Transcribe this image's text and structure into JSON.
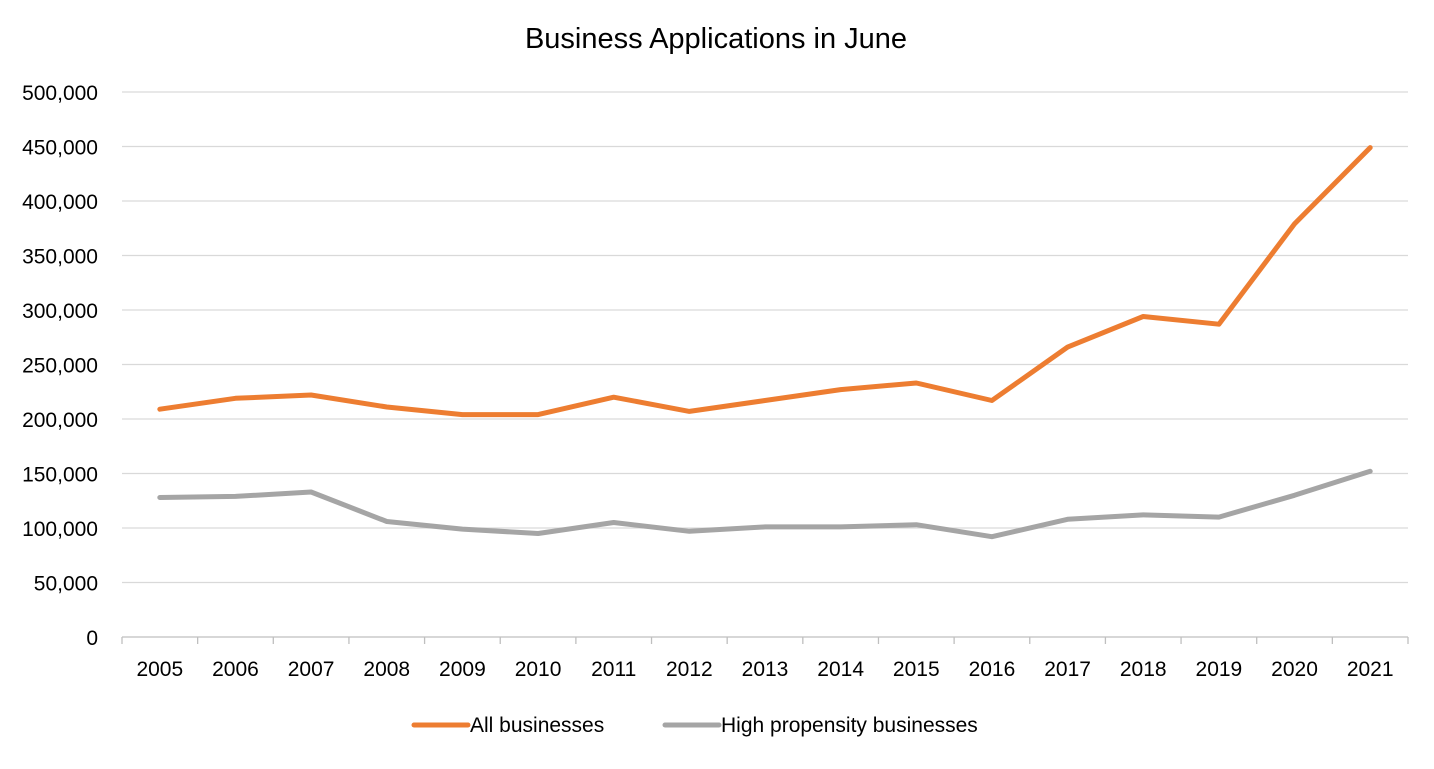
{
  "chart_data": {
    "type": "line",
    "title": "Business Applications in June",
    "xlabel": "",
    "ylabel": "",
    "ylim": [
      0,
      500000
    ],
    "yticks": [
      "0",
      "50,000",
      "100,000",
      "150,000",
      "200,000",
      "250,000",
      "300,000",
      "350,000",
      "400,000",
      "450,000",
      "500,000"
    ],
    "ytick_values": [
      0,
      50000,
      100000,
      150000,
      200000,
      250000,
      300000,
      350000,
      400000,
      450000,
      500000
    ],
    "categories": [
      "2005",
      "2006",
      "2007",
      "2008",
      "2009",
      "2010",
      "2011",
      "2012",
      "2013",
      "2014",
      "2015",
      "2016",
      "2017",
      "2018",
      "2019",
      "2020",
      "2021"
    ],
    "grid": true,
    "legend_position": "bottom",
    "series": [
      {
        "name": "All businesses",
        "color": "#ED7D31",
        "values": [
          209000,
          219000,
          222000,
          211000,
          204000,
          204000,
          220000,
          207000,
          217000,
          227000,
          233000,
          217000,
          266000,
          294000,
          287000,
          379000,
          449000
        ]
      },
      {
        "name": "High propensity businesses",
        "color": "#A5A5A5",
        "values": [
          128000,
          129000,
          133000,
          106000,
          99000,
          95000,
          105000,
          97000,
          101000,
          101000,
          103000,
          92000,
          108000,
          112000,
          110000,
          130000,
          152000
        ]
      }
    ]
  }
}
